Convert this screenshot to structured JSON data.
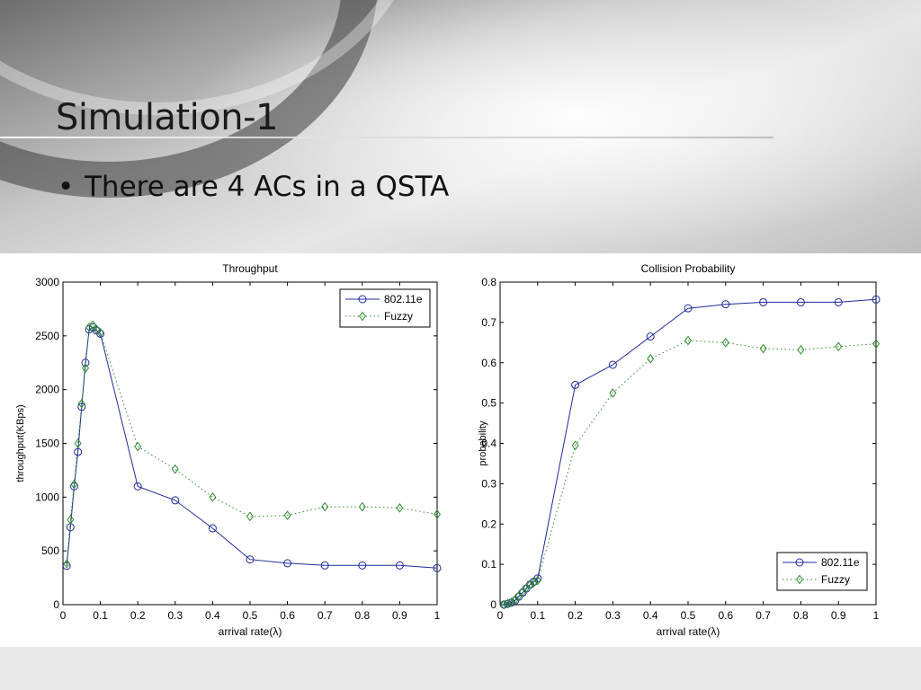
{
  "slide": {
    "title": "Simulation-1",
    "bullets": [
      "There are 4 ACs in a QSTA"
    ]
  },
  "chart_data": [
    {
      "type": "line",
      "title": "Throughput",
      "xlabel": "arrival rate(λ)",
      "ylabel": "throughput(KBps)",
      "xlim": [
        0,
        1
      ],
      "ylim": [
        0,
        3000
      ],
      "xticks": [
        0,
        0.1,
        0.2,
        0.3,
        0.4,
        0.5,
        0.6,
        0.7,
        0.8,
        0.9,
        1
      ],
      "yticks": [
        0,
        500,
        1000,
        1500,
        2000,
        2500,
        3000
      ],
      "grid": false,
      "legend": "top-right",
      "series": [
        {
          "name": "802.11e",
          "color": "#1f2a9c",
          "style": "solid",
          "marker": "circle",
          "x": [
            0.01,
            0.02,
            0.03,
            0.04,
            0.05,
            0.06,
            0.07,
            0.08,
            0.09,
            0.1,
            0.2,
            0.3,
            0.4,
            0.5,
            0.6,
            0.7,
            0.8,
            0.9,
            1.0
          ],
          "y": [
            360,
            720,
            1100,
            1420,
            1840,
            2250,
            2560,
            2580,
            2550,
            2520,
            1100,
            970,
            710,
            420,
            385,
            365,
            365,
            365,
            340
          ]
        },
        {
          "name": "Fuzzy",
          "color": "#2e8b2e",
          "style": "dotted",
          "marker": "diamond",
          "x": [
            0.01,
            0.02,
            0.03,
            0.04,
            0.05,
            0.06,
            0.07,
            0.08,
            0.09,
            0.1,
            0.2,
            0.3,
            0.4,
            0.5,
            0.6,
            0.7,
            0.8,
            0.9,
            1.0
          ],
          "y": [
            380,
            790,
            1120,
            1500,
            1870,
            2200,
            2580,
            2600,
            2560,
            2530,
            1470,
            1260,
            1000,
            820,
            830,
            910,
            910,
            900,
            840
          ]
        }
      ]
    },
    {
      "type": "line",
      "title": "Collision Probability",
      "xlabel": "arrival rate(λ)",
      "ylabel": "probability",
      "xlim": [
        0,
        1
      ],
      "ylim": [
        0,
        0.8
      ],
      "xticks": [
        0,
        0.1,
        0.2,
        0.3,
        0.4,
        0.5,
        0.6,
        0.7,
        0.8,
        0.9,
        1
      ],
      "yticks": [
        0,
        0.1,
        0.2,
        0.3,
        0.4,
        0.5,
        0.6,
        0.7,
        0.8
      ],
      "grid": false,
      "legend": "bottom-right",
      "series": [
        {
          "name": "802.11e",
          "color": "#1f2a9c",
          "style": "solid",
          "marker": "circle",
          "x": [
            0.01,
            0.02,
            0.03,
            0.04,
            0.05,
            0.06,
            0.07,
            0.08,
            0.09,
            0.1,
            0.2,
            0.3,
            0.4,
            0.5,
            0.6,
            0.7,
            0.8,
            0.9,
            1.0
          ],
          "y": [
            0.0,
            0.002,
            0.005,
            0.01,
            0.02,
            0.03,
            0.04,
            0.05,
            0.057,
            0.065,
            0.545,
            0.595,
            0.665,
            0.735,
            0.745,
            0.75,
            0.75,
            0.75,
            0.757
          ]
        },
        {
          "name": "Fuzzy",
          "color": "#2e8b2e",
          "style": "dotted",
          "marker": "diamond",
          "x": [
            0.01,
            0.02,
            0.03,
            0.04,
            0.05,
            0.06,
            0.07,
            0.08,
            0.09,
            0.1,
            0.2,
            0.3,
            0.4,
            0.5,
            0.6,
            0.7,
            0.8,
            0.9,
            1.0
          ],
          "y": [
            0.0,
            0.003,
            0.006,
            0.012,
            0.022,
            0.032,
            0.042,
            0.05,
            0.055,
            0.06,
            0.395,
            0.525,
            0.61,
            0.655,
            0.65,
            0.635,
            0.632,
            0.64,
            0.647
          ]
        }
      ]
    }
  ]
}
